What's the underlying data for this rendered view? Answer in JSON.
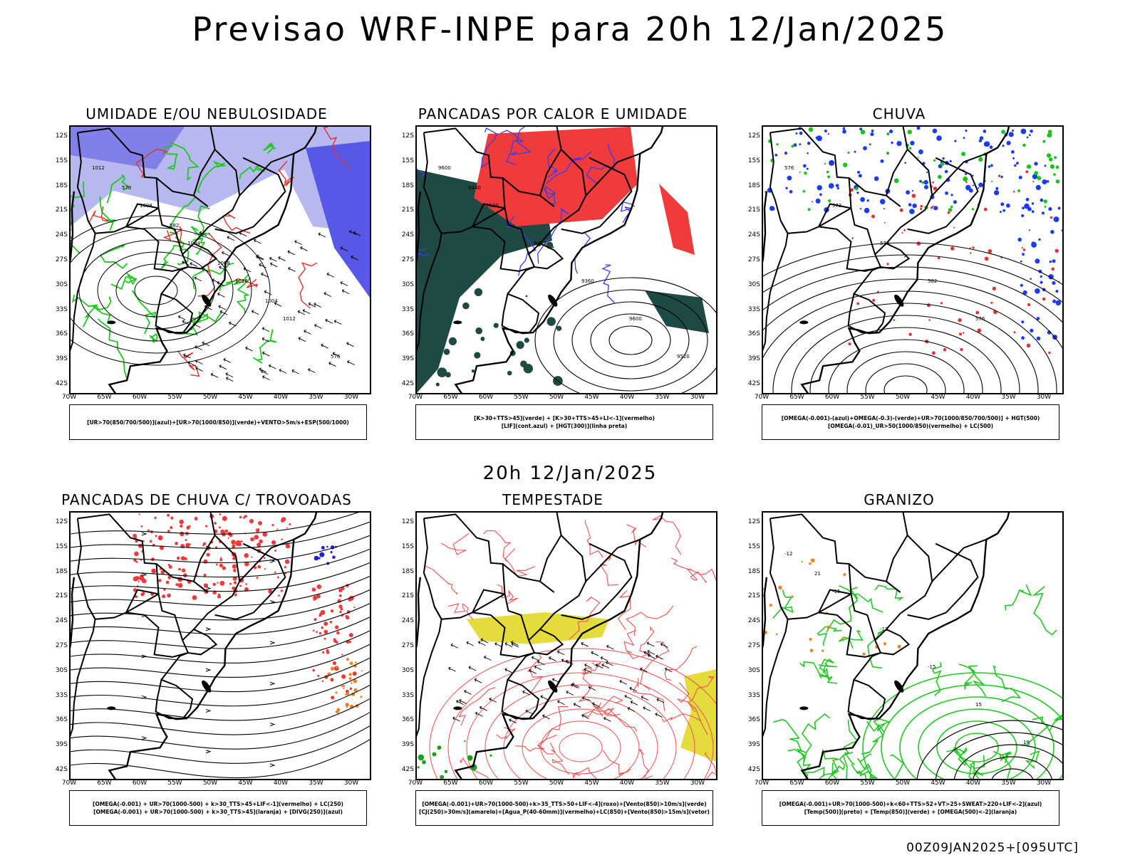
{
  "title": "Previsao WRF-INPE  para 20h 12/Jan/2025",
  "mid_title": "20h 12/Jan/2025",
  "footer": "00Z09JAN2025+[095UTC]",
  "lat_labels": [
    "12S",
    "15S",
    "18S",
    "21S",
    "24S",
    "27S",
    "30S",
    "33S",
    "36S",
    "39S",
    "42S"
  ],
  "lon_labels": [
    "70W",
    "65W",
    "60W",
    "55W",
    "50W",
    "45W",
    "40W",
    "35W",
    "30W"
  ],
  "panels": [
    {
      "title": "UMIDADE E/OU NEBULOSIDADE",
      "legend": [
        "[UR>70(850/700/500)](azul)+[UR>70(1000/850)](verde)+VENTO>5m/s+ESP(500/1000)"
      ],
      "contour_labels": [
        "1012",
        "1008",
        "1004",
        "1016",
        "1012",
        "576",
        "570",
        "582",
        "1008",
        "1004"
      ]
    },
    {
      "title": "PANCADAS POR CALOR E UMIDADE",
      "legend": [
        "[K>30+TTS>45](verde) + [K>30+TTS>45+LI<-1](vermelho)",
        "[LIF](cont.azul) + [HGT(300)](linha preta)"
      ],
      "contour_labels": [
        "9600",
        "9520",
        "9440",
        "9360",
        "9600",
        "9520",
        "9440"
      ]
    },
    {
      "title": "CHUVA",
      "legend": [
        "[OMEGA(-0.001)-(azul)+OMEGA(-0.3)-(verde)+UR>70(1000/850/700/500)] + HGT(500)",
        "[OMEGA(-0.01)_UR>50(1000/850)(vermelho) + LC(500)"
      ],
      "contour_labels": [
        "576",
        "573",
        "570",
        "582",
        "576"
      ]
    },
    {
      "title": "PANCADAS DE CHUVA C/ TROVOADAS",
      "legend": [
        "[OMEGA(-0.001) + UR>70(1000-500) + k>30_TTS>45+LIF<-1](vermelho) + LC(250)",
        "[OMEGA(-0.001) + UR>70(1000-500) + k>30_TTS>45](laranja) + [DIVG(250)](azul)"
      ],
      "contour_labels": []
    },
    {
      "title": "TEMPESTADE",
      "legend": [
        "[OMEGA(-0.001)+UR>70(1000-500)+k>35_TTS>50+LIF<-4](roxo)+[Vento(850)>10m/s](verde)",
        "[CJ(250)>30m/s](amarelo)+[Agua_P(40-60mm)](vermelho)+LC(850)+[Vento(850)>15m/s](vetor)"
      ],
      "contour_labels": []
    },
    {
      "title": "GRANIZO",
      "legend": [
        "[OMEGA(-0.001)+UR>70(1000-500)+k<60+TTS>52+VT>25+SWEAT>220+LIF<-2](azul)",
        "[Temp(500)](preto) + [Temp(850)](verde) + [OMEGA(500)<-2](laranja)"
      ],
      "contour_labels": [
        "-12",
        "-15",
        "-12",
        "-15",
        "15",
        "18",
        "21"
      ]
    }
  ]
}
